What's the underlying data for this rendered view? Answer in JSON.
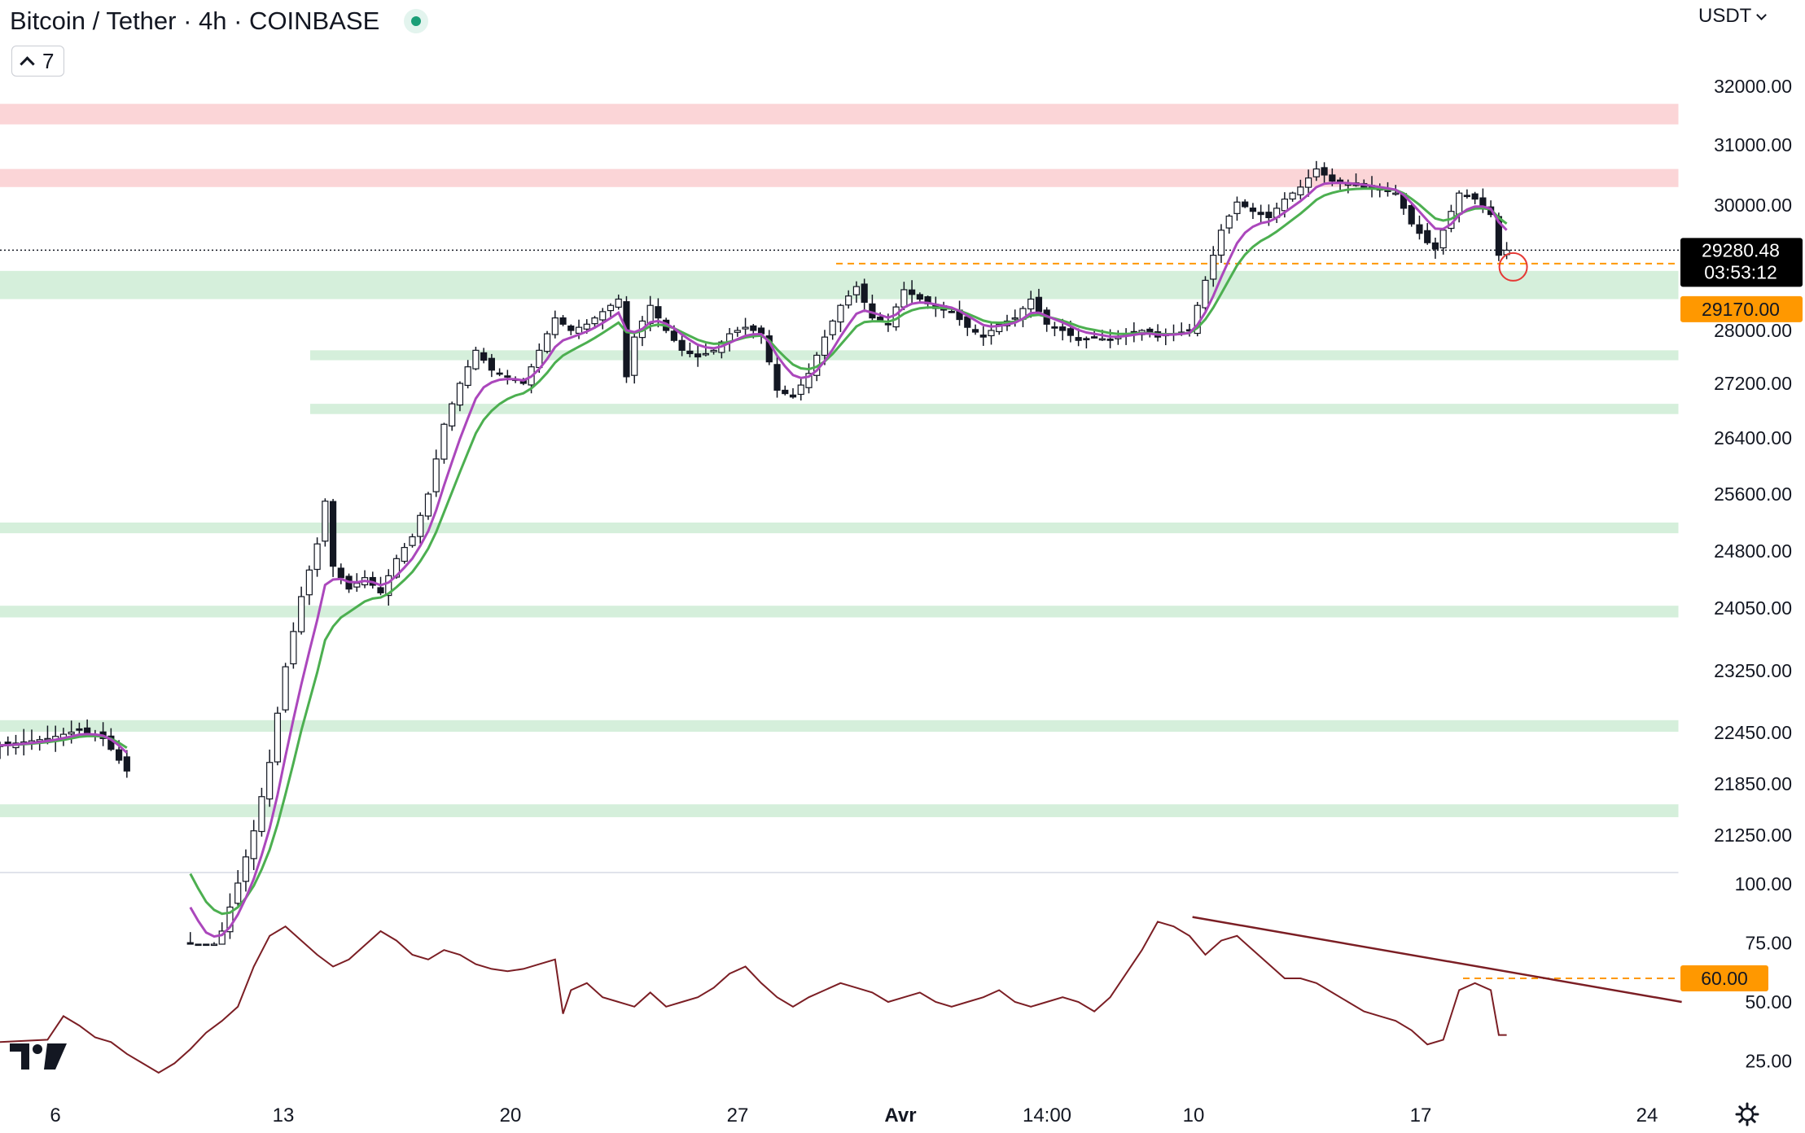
{
  "header": {
    "title": "Bitcoin / Tether · 4h · COINBASE",
    "indicator_count": "7",
    "currency": "USDT"
  },
  "chart_data": [
    {
      "type": "candlestick",
      "symbol": "Bitcoin / Tether",
      "interval": "4h",
      "exchange": "COINBASE",
      "yticks": [
        "32000.00",
        "31000.00",
        "30000.00",
        "28000.00",
        "27200.00",
        "26400.00",
        "25600.00",
        "24800.00",
        "24050.00",
        "23250.00",
        "22450.00",
        "21850.00",
        "21250.00"
      ],
      "x_ticks": [
        "6",
        "13",
        "20",
        "27",
        "Avr",
        "14:00",
        "10",
        "17",
        "24"
      ],
      "last_price": "29280.48",
      "countdown": "03:53:12",
      "marked_level": "29170.00",
      "last_price_color": "#000000",
      "marked_level_color": "#ff9800",
      "resistance_zones": [
        [
          30300,
          30600
        ],
        [
          31350,
          31700
        ]
      ],
      "support_zones": [
        [
          28500,
          28950
        ],
        [
          27550,
          27700
        ],
        [
          26750,
          26900
        ],
        [
          25050,
          25200
        ],
        [
          23930,
          24080
        ],
        [
          22460,
          22610
        ],
        [
          21460,
          21610
        ]
      ],
      "zone_colors": {
        "resistance": "#fbd5d7",
        "support": "#d5efdb"
      },
      "ema_colors": {
        "fast": "#ab47bc",
        "slow": "#4caf50"
      },
      "price_path": [
        [
          0,
          22300
        ],
        [
          6,
          22380
        ],
        [
          10,
          22480
        ],
        [
          13,
          22380
        ],
        [
          16,
          22000
        ],
        [
          19,
          21400
        ],
        [
          20,
          20500
        ],
        [
          22,
          20150
        ],
        [
          24,
          19950
        ],
        [
          26,
          19800
        ],
        [
          28,
          20150
        ],
        [
          30,
          20700
        ],
        [
          32,
          21300
        ],
        [
          34,
          22100
        ],
        [
          36,
          23300
        ],
        [
          38,
          24200
        ],
        [
          40,
          24900
        ],
        [
          41,
          25500
        ],
        [
          42,
          24600
        ],
        [
          44,
          24300
        ],
        [
          46,
          24450
        ],
        [
          48,
          24250
        ],
        [
          50,
          24700
        ],
        [
          52,
          25000
        ],
        [
          54,
          25600
        ],
        [
          56,
          26600
        ],
        [
          58,
          27200
        ],
        [
          60,
          27700
        ],
        [
          62,
          27400
        ],
        [
          64,
          27300
        ],
        [
          66,
          27200
        ],
        [
          68,
          27700
        ],
        [
          70,
          28200
        ],
        [
          72,
          28000
        ],
        [
          74,
          28100
        ],
        [
          76,
          28300
        ],
        [
          78,
          28500
        ],
        [
          79,
          27300
        ],
        [
          80,
          27900
        ],
        [
          82,
          28400
        ],
        [
          84,
          28000
        ],
        [
          86,
          27700
        ],
        [
          88,
          27600
        ],
        [
          90,
          27700
        ],
        [
          92,
          27950
        ],
        [
          94,
          28050
        ],
        [
          96,
          27950
        ],
        [
          98,
          27100
        ],
        [
          100,
          27000
        ],
        [
          102,
          27350
        ],
        [
          104,
          27900
        ],
        [
          106,
          28400
        ],
        [
          108,
          28700
        ],
        [
          110,
          28200
        ],
        [
          112,
          28100
        ],
        [
          114,
          28650
        ],
        [
          116,
          28500
        ],
        [
          118,
          28350
        ],
        [
          120,
          28300
        ],
        [
          122,
          28050
        ],
        [
          124,
          27900
        ],
        [
          126,
          28100
        ],
        [
          128,
          28200
        ],
        [
          130,
          28500
        ],
        [
          132,
          28100
        ],
        [
          134,
          28000
        ],
        [
          136,
          27850
        ],
        [
          138,
          27900
        ],
        [
          140,
          27850
        ],
        [
          142,
          27950
        ],
        [
          144,
          28000
        ],
        [
          146,
          27900
        ],
        [
          148,
          27950
        ],
        [
          150,
          28000
        ],
        [
          152,
          28800
        ],
        [
          154,
          29600
        ],
        [
          156,
          30050
        ],
        [
          158,
          29900
        ],
        [
          160,
          29800
        ],
        [
          162,
          30100
        ],
        [
          164,
          30300
        ],
        [
          166,
          30600
        ],
        [
          168,
          30400
        ],
        [
          170,
          30350
        ],
        [
          172,
          30300
        ],
        [
          174,
          30250
        ],
        [
          176,
          30200
        ],
        [
          178,
          29700
        ],
        [
          180,
          29400
        ],
        [
          181,
          29300
        ],
        [
          182,
          29600
        ],
        [
          184,
          30200
        ],
        [
          186,
          30100
        ],
        [
          188,
          29850
        ],
        [
          189,
          29200
        ],
        [
          190,
          29280
        ]
      ]
    },
    {
      "type": "line",
      "indicator": "RSI",
      "yticks": [
        "100.00",
        "75.00",
        "50.00",
        "25.00"
      ],
      "ylim": [
        0,
        100
      ],
      "marked_level": "60.00",
      "marked_level_color": "#ff9800",
      "line_color": "#7b1e24",
      "trendline_start": [
        136,
        86
      ],
      "trendline_end": [
        190,
        50
      ],
      "values": [
        [
          0,
          33
        ],
        [
          6,
          34
        ],
        [
          8,
          44
        ],
        [
          10,
          40
        ],
        [
          12,
          35
        ],
        [
          14,
          33
        ],
        [
          16,
          28
        ],
        [
          18,
          24
        ],
        [
          20,
          20
        ],
        [
          22,
          24
        ],
        [
          24,
          30
        ],
        [
          26,
          37
        ],
        [
          28,
          42
        ],
        [
          30,
          48
        ],
        [
          32,
          65
        ],
        [
          34,
          78
        ],
        [
          36,
          82
        ],
        [
          38,
          76
        ],
        [
          40,
          70
        ],
        [
          42,
          65
        ],
        [
          44,
          68
        ],
        [
          46,
          74
        ],
        [
          48,
          80
        ],
        [
          50,
          76
        ],
        [
          52,
          70
        ],
        [
          54,
          68
        ],
        [
          56,
          72
        ],
        [
          58,
          70
        ],
        [
          60,
          66
        ],
        [
          62,
          64
        ],
        [
          64,
          63
        ],
        [
          66,
          64
        ],
        [
          68,
          66
        ],
        [
          70,
          68
        ],
        [
          71,
          45
        ],
        [
          72,
          55
        ],
        [
          74,
          58
        ],
        [
          76,
          52
        ],
        [
          78,
          50
        ],
        [
          80,
          48
        ],
        [
          82,
          54
        ],
        [
          84,
          48
        ],
        [
          86,
          50
        ],
        [
          88,
          52
        ],
        [
          90,
          56
        ],
        [
          92,
          62
        ],
        [
          94,
          65
        ],
        [
          96,
          58
        ],
        [
          98,
          52
        ],
        [
          100,
          48
        ],
        [
          102,
          52
        ],
        [
          104,
          55
        ],
        [
          106,
          58
        ],
        [
          108,
          56
        ],
        [
          110,
          54
        ],
        [
          112,
          50
        ],
        [
          114,
          52
        ],
        [
          116,
          54
        ],
        [
          118,
          50
        ],
        [
          120,
          48
        ],
        [
          122,
          50
        ],
        [
          124,
          52
        ],
        [
          126,
          55
        ],
        [
          128,
          50
        ],
        [
          130,
          48
        ],
        [
          132,
          50
        ],
        [
          134,
          52
        ],
        [
          136,
          50
        ],
        [
          138,
          46
        ],
        [
          140,
          52
        ],
        [
          142,
          62
        ],
        [
          144,
          72
        ],
        [
          146,
          84
        ],
        [
          148,
          82
        ],
        [
          150,
          78
        ],
        [
          152,
          70
        ],
        [
          154,
          76
        ],
        [
          156,
          78
        ],
        [
          158,
          72
        ],
        [
          160,
          66
        ],
        [
          162,
          60
        ],
        [
          164,
          60
        ],
        [
          166,
          58
        ],
        [
          168,
          54
        ],
        [
          170,
          50
        ],
        [
          172,
          46
        ],
        [
          174,
          44
        ],
        [
          176,
          42
        ],
        [
          178,
          38
        ],
        [
          180,
          32
        ],
        [
          182,
          34
        ],
        [
          184,
          55
        ],
        [
          186,
          58
        ],
        [
          188,
          55
        ],
        [
          189,
          36
        ],
        [
          190,
          36
        ]
      ]
    }
  ]
}
